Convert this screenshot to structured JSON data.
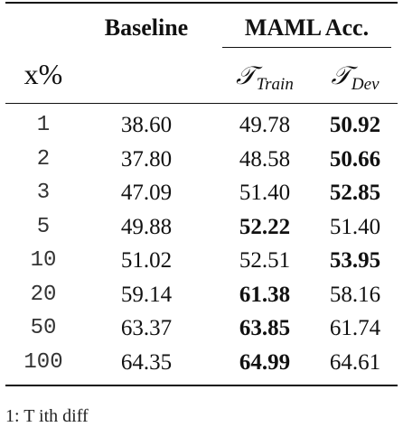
{
  "table": {
    "header": {
      "baseline": "Baseline",
      "maml": "MAML Acc.",
      "x_percent": "x%",
      "train_symbol": "𝒯",
      "train_sub": "Train",
      "dev_symbol": "𝒯",
      "dev_sub": "Dev"
    },
    "rows": [
      {
        "x": "1",
        "baseline": "38.60",
        "train": "49.78",
        "dev": "50.92",
        "bold": "dev"
      },
      {
        "x": "2",
        "baseline": "37.80",
        "train": "48.58",
        "dev": "50.66",
        "bold": "dev"
      },
      {
        "x": "3",
        "baseline": "47.09",
        "train": "51.40",
        "dev": "52.85",
        "bold": "dev"
      },
      {
        "x": "5",
        "baseline": "49.88",
        "train": "52.22",
        "dev": "51.40",
        "bold": "train"
      },
      {
        "x": "10",
        "baseline": "51.02",
        "train": "52.51",
        "dev": "53.95",
        "bold": "dev"
      },
      {
        "x": "20",
        "baseline": "59.14",
        "train": "61.38",
        "dev": "58.16",
        "bold": "train"
      },
      {
        "x": "50",
        "baseline": "63.37",
        "train": "63.85",
        "dev": "61.74",
        "bold": "train"
      },
      {
        "x": "100",
        "baseline": "64.35",
        "train": "64.99",
        "dev": "64.61",
        "bold": "train"
      }
    ]
  },
  "caption_fragment": "1:    T                    ith    diff"
}
